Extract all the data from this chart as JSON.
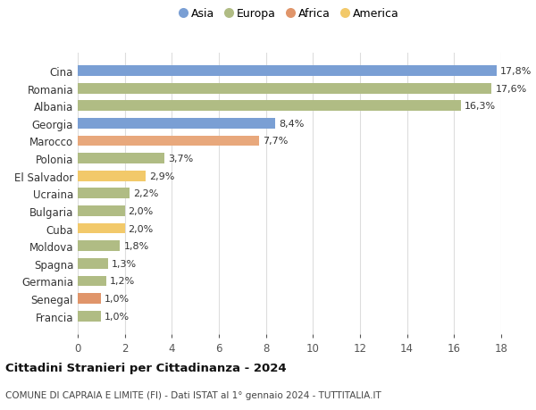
{
  "categories": [
    "Francia",
    "Senegal",
    "Germania",
    "Spagna",
    "Moldova",
    "Cuba",
    "Bulgaria",
    "Ucraina",
    "El Salvador",
    "Polonia",
    "Marocco",
    "Georgia",
    "Albania",
    "Romania",
    "Cina"
  ],
  "values": [
    1.0,
    1.0,
    1.2,
    1.3,
    1.8,
    2.0,
    2.0,
    2.2,
    2.9,
    3.7,
    7.7,
    8.4,
    16.3,
    17.6,
    17.8
  ],
  "colors": [
    "#b0bc84",
    "#e0956a",
    "#b0bc84",
    "#b0bc84",
    "#b0bc84",
    "#f2c96a",
    "#b0bc84",
    "#b0bc84",
    "#f2c96a",
    "#b0bc84",
    "#e8a87c",
    "#7a9fd4",
    "#b0bc84",
    "#b0bc84",
    "#7a9fd4"
  ],
  "labels": [
    "1,0%",
    "1,0%",
    "1,2%",
    "1,3%",
    "1,8%",
    "2,0%",
    "2,0%",
    "2,2%",
    "2,9%",
    "3,7%",
    "7,7%",
    "8,4%",
    "16,3%",
    "17,6%",
    "17,8%"
  ],
  "legend_labels": [
    "Asia",
    "Europa",
    "Africa",
    "America"
  ],
  "legend_colors": [
    "#7a9fd4",
    "#b0bc84",
    "#e0956a",
    "#f2c96a"
  ],
  "title": "Cittadini Stranieri per Cittadinanza - 2024",
  "subtitle": "COMUNE DI CAPRAIA E LIMITE (FI) - Dati ISTAT al 1° gennaio 2024 - TUTTITALIA.IT",
  "xlim": [
    0,
    18
  ],
  "xticks": [
    0,
    2,
    4,
    6,
    8,
    10,
    12,
    14,
    16,
    18
  ],
  "background_color": "#ffffff",
  "bar_height": 0.6
}
